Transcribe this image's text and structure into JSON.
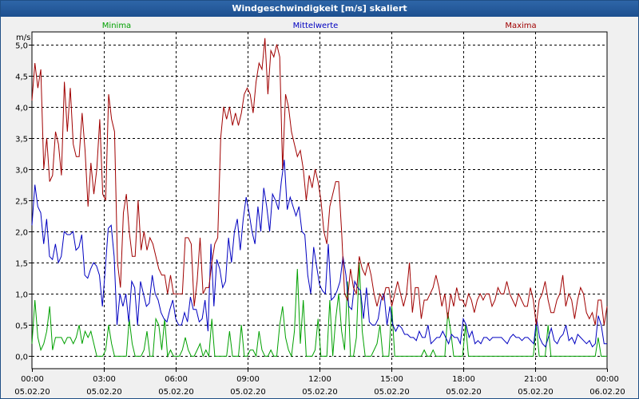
{
  "window": {
    "title": "Windgeschwindigkeit [m/s] skaliert"
  },
  "colors": {
    "minima": "#00a000",
    "mittel": "#0000c0",
    "maxima": "#a00000",
    "grid": "#000000"
  },
  "chart_data": {
    "type": "line",
    "title": "Windgeschwindigkeit [m/s] skaliert",
    "ylabel": "m/s",
    "xlabel": "",
    "ylim": [
      -0.2,
      5.2
    ],
    "xlim": [
      0,
      24
    ],
    "grid": true,
    "legend_placement": "top",
    "yticks": [
      "0,0",
      "0,5",
      "1,0",
      "1,5",
      "2,0",
      "2,5",
      "3,0",
      "3,5",
      "4,0",
      "4,5",
      "5,0"
    ],
    "ytick_values": [
      0,
      0.5,
      1,
      1.5,
      2,
      2.5,
      3,
      3.5,
      4,
      4.5,
      5
    ],
    "xticks": [
      {
        "x": 0,
        "time": "00:00",
        "date": "05.02.20"
      },
      {
        "x": 3,
        "time": "03:00",
        "date": "05.02.20"
      },
      {
        "x": 6,
        "time": "06:00",
        "date": "05.02.20"
      },
      {
        "x": 9,
        "time": "09:00",
        "date": "05.02.20"
      },
      {
        "x": 12,
        "time": "12:00",
        "date": "05.02.20"
      },
      {
        "x": 15,
        "time": "15:00",
        "date": "05.02.20"
      },
      {
        "x": 18,
        "time": "18:00",
        "date": "05.02.20"
      },
      {
        "x": 21,
        "time": "21:00",
        "date": "05.02.20"
      },
      {
        "x": 24,
        "time": "00:00",
        "date": "06.02.20"
      }
    ],
    "series": [
      {
        "name": "Minima",
        "values": [
          0.2,
          0.9,
          0.3,
          0.1,
          0.2,
          0.4,
          0.8,
          0.1,
          0.3,
          0.3,
          0.3,
          0.2,
          0.3,
          0.3,
          0.2,
          0.3,
          0.5,
          0.2,
          0.4,
          0.3,
          0.4,
          0.2,
          0.0,
          0.0,
          0.0,
          0.1,
          0.5,
          0.2,
          0.0,
          0.0,
          0.0,
          0.0,
          0.0,
          0.6,
          0.2,
          0.0,
          0.0,
          0.0,
          0.1,
          0.4,
          0.0,
          0.0,
          0.6,
          0.5,
          0.1,
          0.6,
          0.0,
          0.1,
          0.0,
          0.0,
          0.0,
          0.1,
          0.3,
          0.1,
          0.0,
          0.0,
          0.1,
          0.2,
          0.0,
          0.1,
          0.0,
          0.6,
          0.0,
          0.0,
          0.0,
          0.0,
          0.0,
          0.4,
          0.0,
          0.0,
          0.0,
          0.5,
          0.0,
          0.0,
          0.1,
          0.1,
          0.0,
          0.4,
          0.1,
          0.0,
          0.0,
          0.1,
          0.0,
          0.0,
          0.5,
          0.8,
          0.3,
          0.1,
          0.0,
          0.4,
          1.4,
          0.2,
          0.9,
          0.0,
          0.0,
          0.0,
          0.1,
          0.6,
          0.0,
          0.0,
          0.0,
          0.9,
          0.0,
          0.6,
          1.0,
          0.4,
          0.1,
          1.2,
          0.0,
          0.0,
          0.3,
          1.5,
          0.4,
          0.0,
          0.0,
          0.0,
          0.1,
          0.2,
          0.5,
          0.0,
          0.0,
          0.0,
          0.8,
          0.0,
          0.0,
          0.0,
          0.0,
          0.0,
          0.0,
          0.0,
          0.0,
          0.0,
          0.0,
          0.1,
          0.0,
          0.0,
          0.1,
          0.0,
          0.0,
          0.0,
          0.0,
          0.7,
          0.4,
          0.0,
          0.0,
          0.0,
          0.0,
          0.5,
          0.0,
          0.0,
          0.0,
          0.0,
          0.0,
          0.0,
          0.0,
          0.0,
          0.0,
          0.0,
          0.0,
          0.0,
          0.0,
          0.0,
          0.0,
          0.0,
          0.0,
          0.0,
          0.0,
          0.0,
          0.0,
          0.0,
          0.0,
          0.5,
          0.0,
          0.0,
          0.0,
          0.5,
          0.0,
          0.0,
          0.0,
          0.0,
          0.0,
          0.0,
          0.0,
          0.0,
          0.0,
          0.0,
          0.0,
          0.0,
          0.0,
          0.0,
          0.0,
          0.0,
          0.3,
          0.0,
          0.0,
          0.0
        ]
      },
      {
        "name": "Mittelwerte",
        "values": [
          2.1,
          2.75,
          2.4,
          2.3,
          1.8,
          2.2,
          1.6,
          1.55,
          1.8,
          1.5,
          1.6,
          2.0,
          1.95,
          1.95,
          2.0,
          1.7,
          1.75,
          1.95,
          1.3,
          1.25,
          1.4,
          1.5,
          1.45,
          1.3,
          0.8,
          1.4,
          2.05,
          2.1,
          1.6,
          0.5,
          1.0,
          0.8,
          1.0,
          0.55,
          1.2,
          1.1,
          0.5,
          1.2,
          1.0,
          0.8,
          0.85,
          1.3,
          1.0,
          0.9,
          0.7,
          0.6,
          0.55,
          0.75,
          0.9,
          0.6,
          0.5,
          0.5,
          0.7,
          0.55,
          0.95,
          0.75,
          0.75,
          0.55,
          0.6,
          0.9,
          0.4,
          1.8,
          0.8,
          1.55,
          1.4,
          1.1,
          1.2,
          1.9,
          1.5,
          2.0,
          2.2,
          1.7,
          2.2,
          2.55,
          2.3,
          2.0,
          1.8,
          2.4,
          2.0,
          2.7,
          2.4,
          2.0,
          2.6,
          2.5,
          2.35,
          2.8,
          3.15,
          2.35,
          2.55,
          2.4,
          2.25,
          2.4,
          2.0,
          1.95,
          1.3,
          1.0,
          1.75,
          1.45,
          1.15,
          1.05,
          1.0,
          1.8,
          0.9,
          0.95,
          1.05,
          1.2,
          1.6,
          1.3,
          0.8,
          0.75,
          1.2,
          1.1,
          1.05,
          0.6,
          1.1,
          0.55,
          0.5,
          0.5,
          0.6,
          0.9,
          1.0,
          0.5,
          0.8,
          0.5,
          0.4,
          0.5,
          0.45,
          0.35,
          0.35,
          0.3,
          0.3,
          0.25,
          0.4,
          0.3,
          0.3,
          0.5,
          0.2,
          0.25,
          0.3,
          0.3,
          0.4,
          0.3,
          0.2,
          0.35,
          0.3,
          0.3,
          0.2,
          0.6,
          0.5,
          0.3,
          0.4,
          0.2,
          0.25,
          0.2,
          0.3,
          0.3,
          0.25,
          0.3,
          0.3,
          0.3,
          0.3,
          0.25,
          0.2,
          0.3,
          0.35,
          0.3,
          0.3,
          0.25,
          0.3,
          0.3,
          0.25,
          0.2,
          0.6,
          0.3,
          0.2,
          0.15,
          0.3,
          0.45,
          0.25,
          0.2,
          0.3,
          0.35,
          0.5,
          0.25,
          0.3,
          0.2,
          0.35,
          0.3,
          0.25,
          0.2,
          0.25,
          0.15,
          0.2,
          0.65,
          0.5,
          0.2,
          0.2
        ]
      },
      {
        "name": "Maxima",
        "values": [
          4.1,
          4.7,
          4.3,
          4.6,
          3.0,
          3.5,
          2.8,
          2.9,
          3.6,
          3.4,
          2.9,
          4.4,
          3.6,
          4.3,
          3.4,
          3.2,
          3.2,
          3.9,
          3.3,
          2.4,
          3.1,
          2.6,
          3.0,
          3.8,
          2.6,
          2.5,
          4.2,
          3.8,
          3.6,
          1.5,
          1.1,
          2.3,
          2.6,
          2.0,
          1.6,
          1.6,
          2.5,
          1.7,
          2.0,
          1.7,
          1.9,
          1.8,
          1.6,
          1.4,
          1.3,
          1.3,
          1.0,
          1.3,
          1.0,
          1.0,
          1.0,
          1.0,
          1.9,
          1.9,
          1.8,
          0.8,
          1.2,
          1.9,
          1.0,
          1.1,
          1.1,
          1.5,
          1.8,
          1.9,
          3.5,
          4.0,
          3.8,
          4.0,
          3.7,
          3.9,
          3.7,
          3.9,
          4.2,
          4.3,
          4.2,
          3.9,
          4.4,
          4.7,
          4.6,
          5.1,
          4.2,
          4.9,
          4.8,
          5.0,
          4.8,
          3.0,
          4.2,
          4.0,
          3.6,
          3.4,
          3.2,
          3.3,
          3.0,
          2.5,
          2.9,
          2.7,
          3.0,
          2.8,
          2.5,
          2.0,
          1.8,
          2.4,
          2.6,
          2.8,
          2.8,
          2.0,
          1.0,
          0.9,
          1.4,
          1.1,
          1.0,
          1.6,
          1.4,
          1.3,
          1.5,
          1.3,
          1.0,
          0.8,
          1.0,
          0.9,
          1.1,
          1.1,
          0.8,
          1.0,
          1.2,
          1.0,
          0.8,
          1.0,
          1.5,
          0.7,
          1.1,
          1.1,
          0.6,
          0.9,
          0.9,
          1.0,
          1.1,
          1.3,
          1.1,
          0.8,
          1.0,
          0.6,
          1.0,
          0.8,
          1.1,
          0.9,
          0.9,
          0.8,
          1.0,
          0.9,
          0.7,
          0.9,
          1.0,
          0.9,
          1.0,
          1.0,
          0.8,
          0.9,
          1.1,
          1.0,
          1.0,
          1.2,
          1.0,
          0.9,
          0.8,
          1.0,
          0.9,
          0.8,
          0.8,
          1.1,
          0.9,
          0.5,
          0.9,
          1.0,
          1.2,
          0.9,
          0.7,
          0.7,
          0.9,
          1.0,
          1.3,
          0.8,
          1.0,
          0.9,
          0.6,
          0.9,
          1.1,
          1.0,
          0.7,
          0.6,
          0.7,
          0.5,
          0.9,
          0.9,
          0.5,
          0.8
        ]
      }
    ]
  }
}
